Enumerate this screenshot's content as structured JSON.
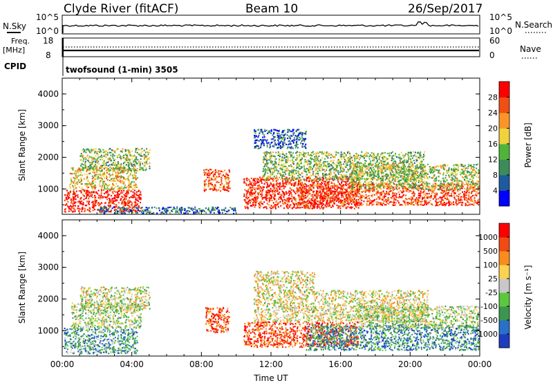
{
  "header": {
    "station": "Clyde River (fitACF)",
    "beam": "Beam 10",
    "date": "26/Sep/2017"
  },
  "nsky_panel": {
    "left_label": "N.Sky",
    "right_label": "N.Search",
    "left_ticks": [
      "10^5",
      "10^0"
    ],
    "right_ticks": [
      "10^5",
      "10^0"
    ]
  },
  "freq_panel": {
    "left_label_top": "Freq.",
    "left_label_unit": "[MHz]",
    "left_ticks": [
      "18",
      "8"
    ],
    "right_ticks": [
      "60",
      "0"
    ],
    "right_label": "Nave"
  },
  "cpid": {
    "label": "CPID",
    "text": "twofsound (1-min) 3505"
  },
  "chart_data": [
    {
      "type": "heatmap",
      "panel": "power",
      "ylabel": "Slant Range [km]",
      "xlabel": "",
      "ylim": [
        200,
        4500
      ],
      "xlim": [
        0,
        24
      ],
      "y_ticks": [
        "1000",
        "2000",
        "3000",
        "4000"
      ],
      "colorbar": {
        "label": "Power [dB]",
        "ticks": [
          "4",
          "8",
          "12",
          "16",
          "20",
          "24",
          "28"
        ],
        "colors": [
          "#0000ff",
          "#1e5aa0",
          "#3c8c5a",
          "#50b43c",
          "#f0d23c",
          "#fa9628",
          "#f05014",
          "#ff0000"
        ]
      },
      "regions": [
        {
          "t0": 0.1,
          "t1": 4.5,
          "r0": 300,
          "r1": 1000,
          "v": 0.95
        },
        {
          "t0": 0.4,
          "t1": 4.3,
          "r0": 1000,
          "r1": 1700,
          "v": 0.6
        },
        {
          "t0": 1.0,
          "t1": 5.0,
          "r0": 1600,
          "r1": 2300,
          "v": 0.45
        },
        {
          "t0": 8.1,
          "t1": 9.6,
          "r0": 950,
          "r1": 1650,
          "v": 0.8
        },
        {
          "t0": 10.4,
          "t1": 17.0,
          "r0": 400,
          "r1": 1400,
          "v": 0.9
        },
        {
          "t0": 11.5,
          "t1": 20.8,
          "r0": 1300,
          "r1": 2200,
          "v": 0.45
        },
        {
          "t0": 11.0,
          "t1": 14.0,
          "r0": 2300,
          "r1": 2900,
          "v": 0.2
        },
        {
          "t0": 13.5,
          "t1": 24.0,
          "r0": 500,
          "r1": 1200,
          "v": 0.85
        },
        {
          "t0": 16.5,
          "t1": 24.0,
          "r0": 1000,
          "r1": 1800,
          "v": 0.5
        },
        {
          "t0": 2.0,
          "t1": 10.0,
          "r0": 200,
          "r1": 450,
          "v": 0.25
        }
      ]
    },
    {
      "type": "heatmap",
      "panel": "velocity",
      "ylabel": "Slant Range [km]",
      "xlabel": "Time UT",
      "ylim": [
        200,
        4500
      ],
      "xlim": [
        0,
        24
      ],
      "y_ticks": [
        "1000",
        "2000",
        "3000",
        "4000"
      ],
      "x_ticks": [
        "00:00",
        "04:00",
        "08:00",
        "12:00",
        "16:00",
        "20:00",
        "00:00"
      ],
      "colorbar": {
        "label": "Velocity [m s⁻¹]",
        "ticks": [
          "1000",
          "500",
          "100",
          "25",
          "-25",
          "-100",
          "-500",
          "-1000"
        ],
        "colors": [
          "#1e3cbe",
          "#2870c8",
          "#3c9650",
          "#5ac83c",
          "#c8c8c8",
          "#fad250",
          "#fa8c1e",
          "#f04b14",
          "#ff0000"
        ]
      },
      "regions": [
        {
          "t0": 0.1,
          "t1": 4.3,
          "r0": 300,
          "r1": 1100,
          "v": 0.3
        },
        {
          "t0": 0.5,
          "t1": 4.5,
          "r0": 1100,
          "r1": 1900,
          "v": 0.45
        },
        {
          "t0": 1.0,
          "t1": 5.0,
          "r0": 1700,
          "r1": 2400,
          "v": 0.5
        },
        {
          "t0": 8.2,
          "t1": 9.6,
          "r0": 950,
          "r1": 1750,
          "v": 0.85
        },
        {
          "t0": 10.4,
          "t1": 17.0,
          "r0": 500,
          "r1": 1300,
          "v": 0.85
        },
        {
          "t0": 11.0,
          "t1": 21.0,
          "r0": 1300,
          "r1": 2300,
          "v": 0.55
        },
        {
          "t0": 11.0,
          "t1": 14.5,
          "r0": 2300,
          "r1": 2900,
          "v": 0.55
        },
        {
          "t0": 14.0,
          "t1": 24.0,
          "r0": 400,
          "r1": 1200,
          "v": 0.25
        },
        {
          "t0": 17.0,
          "t1": 24.0,
          "r0": 1100,
          "r1": 1800,
          "v": 0.45
        }
      ]
    }
  ]
}
